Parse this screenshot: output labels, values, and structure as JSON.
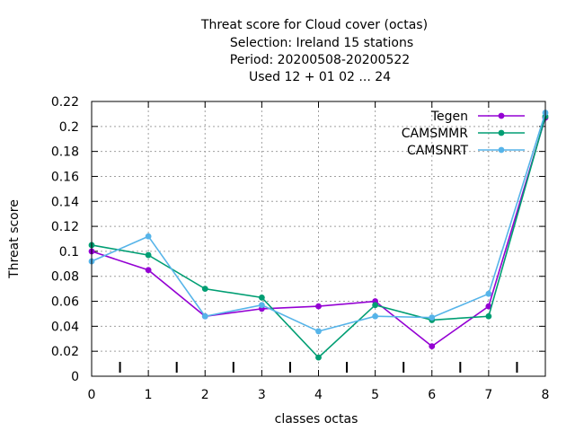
{
  "chart_data": {
    "type": "line",
    "title_lines": [
      "Threat score  for Cloud cover (octas)",
      "Selection: Ireland      15 stations",
      "Period: 20200508-20200522",
      "Used  12 + 01 02 ... 24"
    ],
    "xlabel": "classes octas",
    "ylabel": "Threat score",
    "x": [
      0,
      1,
      2,
      3,
      4,
      5,
      6,
      7,
      8
    ],
    "xlim": [
      0,
      8
    ],
    "ylim": [
      0,
      0.22
    ],
    "x_ticks": [
      "0",
      "1",
      "2",
      "3",
      "4",
      "5",
      "6",
      "7",
      "8"
    ],
    "y_ticks": [
      "0",
      "0.02",
      "0.04",
      "0.06",
      "0.08",
      "0.1",
      "0.12",
      "0.14",
      "0.16",
      "0.18",
      "0.2",
      "0.22"
    ],
    "grid": true,
    "legend_position": "top-right",
    "series": [
      {
        "name": "Tegen",
        "color": "#9400d3",
        "values": [
          0.1,
          0.085,
          0.048,
          0.054,
          0.056,
          0.06,
          0.024,
          0.056,
          0.207
        ]
      },
      {
        "name": "CAMSMMR",
        "color": "#009e73",
        "values": [
          0.105,
          0.097,
          0.07,
          0.063,
          0.015,
          0.057,
          0.045,
          0.048,
          0.208
        ]
      },
      {
        "name": "CAMSNRT",
        "color": "#56b4e9",
        "values": [
          0.092,
          0.112,
          0.048,
          0.057,
          0.036,
          0.048,
          0.047,
          0.066,
          0.211
        ]
      }
    ]
  }
}
